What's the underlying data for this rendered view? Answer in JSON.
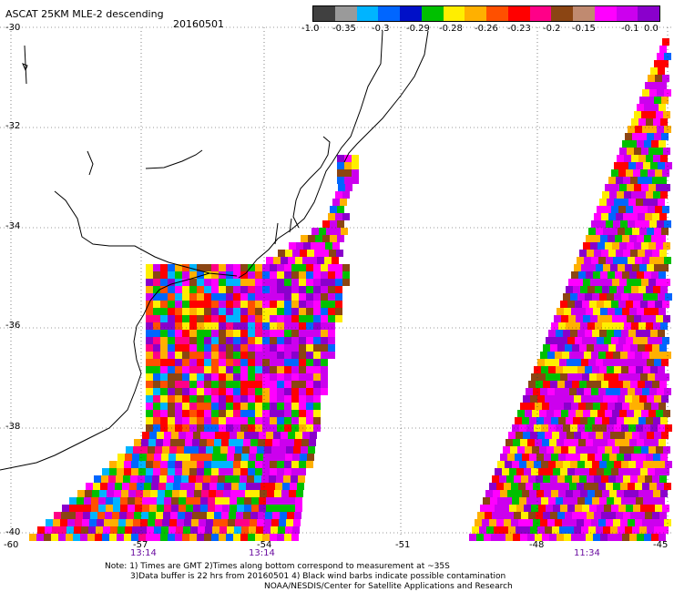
{
  "title": "ASCAT 25KM MLE-2 descending",
  "date": "20160501",
  "colorbar": {
    "colors": [
      "#404040",
      "#9a9a9a",
      "#00b4ff",
      "#0066ff",
      "#0010c8",
      "#00c000",
      "#ffee00",
      "#ffb000",
      "#ff5000",
      "#ff0000",
      "#ff0088",
      "#8b4513",
      "#c08a70",
      "#ff00ff",
      "#cc00ee",
      "#8a00cc"
    ],
    "labels": [
      "-1.0",
      "-0.35",
      "-0.3",
      "-0.29",
      "-0.28",
      "-0.26",
      "-0.23",
      "-0.2",
      "-0.15",
      "-0.1",
      "0.0"
    ]
  },
  "axes": {
    "lat_labels": [
      "-30",
      "-32",
      "-34",
      "-36",
      "-38",
      "-40"
    ],
    "lon_labels": [
      "-60",
      "-57",
      "-54",
      "-51",
      "-48",
      "-45"
    ]
  },
  "pass_times": [
    "13:14",
    "13:14",
    "11:34"
  ],
  "notes": [
    "Note: 1) Times are GMT 2)Times along bottom correspond to measurement at ~35S",
    "3)Data buffer is 22 hrs from 20160501 4) Black wind barbs indicate possible contamination",
    "NOAA/NESDIS/Center for Satellite Applications and Research"
  ]
}
